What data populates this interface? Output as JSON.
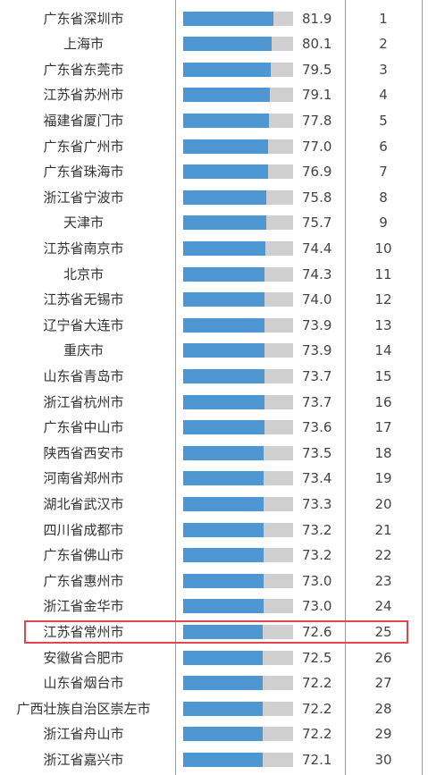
{
  "chart_data": {
    "type": "bar",
    "orientation": "horizontal",
    "title": "",
    "xlim": [
      0,
      100
    ],
    "colors": {
      "bar": "#4f97d2",
      "track": "#cfcfcf",
      "highlight": "#e0474c"
    },
    "highlighted_rank": 25,
    "rows": [
      {
        "name": "广东省深圳市",
        "value": "81.9",
        "rank": "1"
      },
      {
        "name": "上海市",
        "value": "80.1",
        "rank": "2"
      },
      {
        "name": "广东省东莞市",
        "value": "79.5",
        "rank": "3"
      },
      {
        "name": "江苏省苏州市",
        "value": "79.1",
        "rank": "4"
      },
      {
        "name": "福建省厦门市",
        "value": "77.8",
        "rank": "5"
      },
      {
        "name": "广东省广州市",
        "value": "77.0",
        "rank": "6"
      },
      {
        "name": "广东省珠海市",
        "value": "76.9",
        "rank": "7"
      },
      {
        "name": "浙江省宁波市",
        "value": "75.8",
        "rank": "8"
      },
      {
        "name": "天津市",
        "value": "75.7",
        "rank": "9"
      },
      {
        "name": "江苏省南京市",
        "value": "74.4",
        "rank": "10"
      },
      {
        "name": "北京市",
        "value": "74.3",
        "rank": "11"
      },
      {
        "name": "江苏省无锡市",
        "value": "74.0",
        "rank": "12"
      },
      {
        "name": "辽宁省大连市",
        "value": "73.9",
        "rank": "13"
      },
      {
        "name": "重庆市",
        "value": "73.9",
        "rank": "14"
      },
      {
        "name": "山东省青岛市",
        "value": "73.7",
        "rank": "15"
      },
      {
        "name": "浙江省杭州市",
        "value": "73.7",
        "rank": "16"
      },
      {
        "name": "广东省中山市",
        "value": "73.6",
        "rank": "17"
      },
      {
        "name": "陕西省西安市",
        "value": "73.5",
        "rank": "18"
      },
      {
        "name": "河南省郑州市",
        "value": "73.4",
        "rank": "19"
      },
      {
        "name": "湖北省武汉市",
        "value": "73.3",
        "rank": "20"
      },
      {
        "name": "四川省成都市",
        "value": "73.2",
        "rank": "21"
      },
      {
        "name": "广东省佛山市",
        "value": "73.2",
        "rank": "22"
      },
      {
        "name": "广东省惠州市",
        "value": "73.0",
        "rank": "23"
      },
      {
        "name": "浙江省金华市",
        "value": "73.0",
        "rank": "24"
      },
      {
        "name": "江苏省常州市",
        "value": "72.6",
        "rank": "25"
      },
      {
        "name": "安徽省合肥市",
        "value": "72.5",
        "rank": "26"
      },
      {
        "name": "山东省烟台市",
        "value": "72.2",
        "rank": "27"
      },
      {
        "name": "广西壮族自治区崇左市",
        "value": "72.2",
        "rank": "28"
      },
      {
        "name": "浙江省舟山市",
        "value": "72.2",
        "rank": "29"
      },
      {
        "name": "浙江省嘉兴市",
        "value": "72.1",
        "rank": "30"
      }
    ]
  }
}
